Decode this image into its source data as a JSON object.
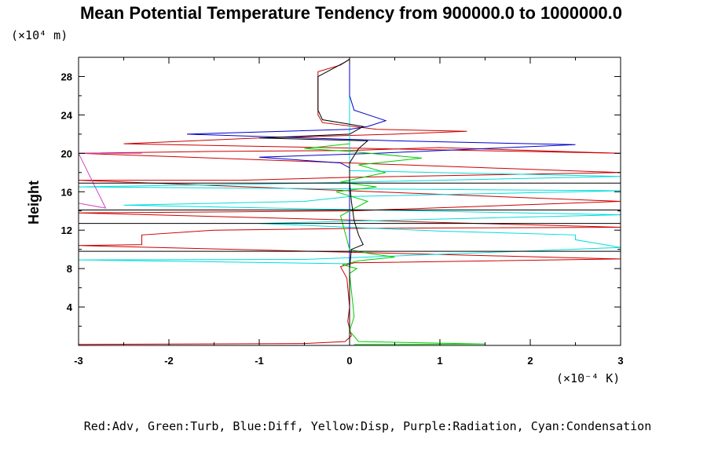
{
  "chart_data": {
    "type": "line",
    "title": "Mean Potential Temperature Tendency from 900000.0 to 1000000.0",
    "xlabel_units": "(×10⁻⁴ K)",
    "ylabel": "Height",
    "ylabel_units": "(×10⁴ m)",
    "xlim": [
      -3,
      3
    ],
    "ylim": [
      0,
      30
    ],
    "x_ticks": [
      "-3",
      "-2",
      "-1",
      "0",
      "1",
      "2",
      "3"
    ],
    "y_ticks": [
      "4",
      "8",
      "12",
      "16",
      "20",
      "24",
      "28"
    ],
    "grid": false,
    "legend_text": "Red:Adv, Green:Turb, Blue:Diff, Yellow:Disp, Purple:Radiation, Cyan:Condensation",
    "colors": {
      "Adv": "#cc0000",
      "Turb": "#00cc00",
      "Diff": "#0000cc",
      "Radiation": "#cc44cc",
      "Condensation": "#00dddd",
      "Total": "#000000"
    },
    "series": [
      {
        "key": "Adv",
        "points": [
          [
            -3,
            0.1
          ],
          [
            -0.5,
            0.2
          ],
          [
            -0.05,
            0.4
          ],
          [
            0.02,
            1.0
          ],
          [
            -0.02,
            2.5
          ],
          [
            0.0,
            4.0
          ],
          [
            -0.03,
            7.0
          ],
          [
            -0.1,
            8.2
          ],
          [
            0.05,
            8.6
          ],
          [
            3,
            9.0
          ],
          [
            -3,
            10.4
          ],
          [
            -2.3,
            10.5
          ],
          [
            -2.3,
            11.5
          ],
          [
            -1.5,
            12.0
          ],
          [
            0.2,
            12.2
          ],
          [
            3,
            12.3
          ],
          [
            -3,
            13.8
          ],
          [
            -1.5,
            13.9
          ],
          [
            0.0,
            14.0
          ],
          [
            3,
            15.0
          ],
          [
            -3,
            17.2
          ],
          [
            -1.2,
            17.2
          ],
          [
            0.0,
            17.5
          ],
          [
            3,
            18.0
          ],
          [
            -3,
            20.0
          ],
          [
            -1.5,
            20.2
          ],
          [
            0.0,
            20.3
          ],
          [
            1.0,
            20.6
          ],
          [
            3,
            20.0
          ],
          [
            -2.5,
            21.0
          ],
          [
            -1.0,
            21.6
          ],
          [
            0.5,
            22.0
          ],
          [
            1.3,
            22.3
          ],
          [
            0.3,
            22.5
          ],
          [
            -0.3,
            23.2
          ],
          [
            -0.35,
            24.0
          ],
          [
            -0.35,
            26.0
          ],
          [
            -0.35,
            28.5
          ],
          [
            -0.1,
            29.2
          ],
          [
            0.0,
            29.8
          ]
        ]
      },
      {
        "key": "Condensation",
        "points": [
          [
            0.0,
            0.1
          ],
          [
            0.0,
            5.0
          ],
          [
            0.0,
            8.5
          ],
          [
            -3,
            8.9
          ],
          [
            -0.5,
            8.95
          ],
          [
            3,
            10.2
          ],
          [
            2.5,
            11.0
          ],
          [
            2.5,
            11.5
          ],
          [
            1.0,
            11.9
          ],
          [
            0.0,
            12.3
          ],
          [
            -1.0,
            12.7
          ],
          [
            3,
            13.6
          ],
          [
            -2.5,
            14.6
          ],
          [
            -0.5,
            15.0
          ],
          [
            0.0,
            15.5
          ],
          [
            3,
            16.1
          ],
          [
            -3,
            16.5
          ],
          [
            -1.0,
            16.8
          ],
          [
            3,
            17.6
          ],
          [
            0.0,
            18.2
          ],
          [
            0.0,
            22.0
          ],
          [
            0.0,
            29.8
          ]
        ]
      },
      {
        "key": "Diff",
        "points": [
          [
            0.0,
            0.1
          ],
          [
            0.0,
            18.5
          ],
          [
            -0.1,
            19.0
          ],
          [
            -1.0,
            19.6
          ],
          [
            0.3,
            20.0
          ],
          [
            2.5,
            20.9
          ],
          [
            0.5,
            21.3
          ],
          [
            -1.8,
            22.0
          ],
          [
            0.0,
            22.5
          ],
          [
            0.2,
            22.8
          ],
          [
            0.4,
            23.4
          ],
          [
            0.05,
            24.5
          ],
          [
            0.0,
            26.0
          ],
          [
            0.0,
            29.8
          ]
        ]
      },
      {
        "key": "Turb",
        "points": [
          [
            0.05,
            0.1
          ],
          [
            1.5,
            0.15
          ],
          [
            0.1,
            0.4
          ],
          [
            0.0,
            1.5
          ],
          [
            0.05,
            3.0
          ],
          [
            0.0,
            7.5
          ],
          [
            0.08,
            8.0
          ],
          [
            -0.08,
            8.4
          ],
          [
            0.1,
            8.8
          ],
          [
            0.5,
            9.2
          ],
          [
            0.2,
            9.6
          ],
          [
            0.0,
            10.0
          ],
          [
            -0.1,
            13.5
          ],
          [
            0.2,
            15.0
          ],
          [
            -0.15,
            16.0
          ],
          [
            0.3,
            16.5
          ],
          [
            -0.1,
            17.0
          ],
          [
            0.4,
            18.0
          ],
          [
            0.1,
            18.8
          ],
          [
            0.8,
            19.5
          ],
          [
            0.0,
            20.2
          ],
          [
            -0.5,
            20.5
          ],
          [
            0.0,
            21.0
          ]
        ]
      },
      {
        "key": "Radiation",
        "points": [
          [
            -3,
            14.8
          ],
          [
            -2.7,
            14.3
          ],
          [
            -3,
            20.0
          ],
          [
            -2.3,
            20.0
          ]
        ]
      },
      {
        "key": "Total",
        "points": [
          [
            0.0,
            0.1
          ],
          [
            0.0,
            8.0
          ],
          [
            0.02,
            10.0
          ],
          [
            0.15,
            10.5
          ],
          [
            0.1,
            11.5
          ],
          [
            0.05,
            13.0
          ],
          [
            0.02,
            15.0
          ],
          [
            0.0,
            17.0
          ],
          [
            0.0,
            19.0
          ],
          [
            0.1,
            20.5
          ],
          [
            0.2,
            21.3
          ],
          [
            -1.0,
            21.6
          ],
          [
            0.0,
            22.0
          ],
          [
            0.15,
            22.8
          ],
          [
            -0.3,
            23.5
          ],
          [
            -0.35,
            24.5
          ],
          [
            -0.35,
            28.0
          ],
          [
            -0.05,
            29.5
          ],
          [
            0.0,
            29.8
          ]
        ]
      },
      {
        "key": "Total",
        "points": [
          [
            -3,
            9.8
          ],
          [
            3,
            9.8
          ]
        ]
      },
      {
        "key": "Total",
        "points": [
          [
            -3,
            12.7
          ],
          [
            3,
            12.7
          ]
        ]
      },
      {
        "key": "Total",
        "points": [
          [
            -3,
            16.9
          ],
          [
            3,
            16.9
          ]
        ]
      },
      {
        "key": "Total",
        "points": [
          [
            -3,
            14.1
          ],
          [
            3,
            14.1
          ]
        ]
      }
    ]
  }
}
